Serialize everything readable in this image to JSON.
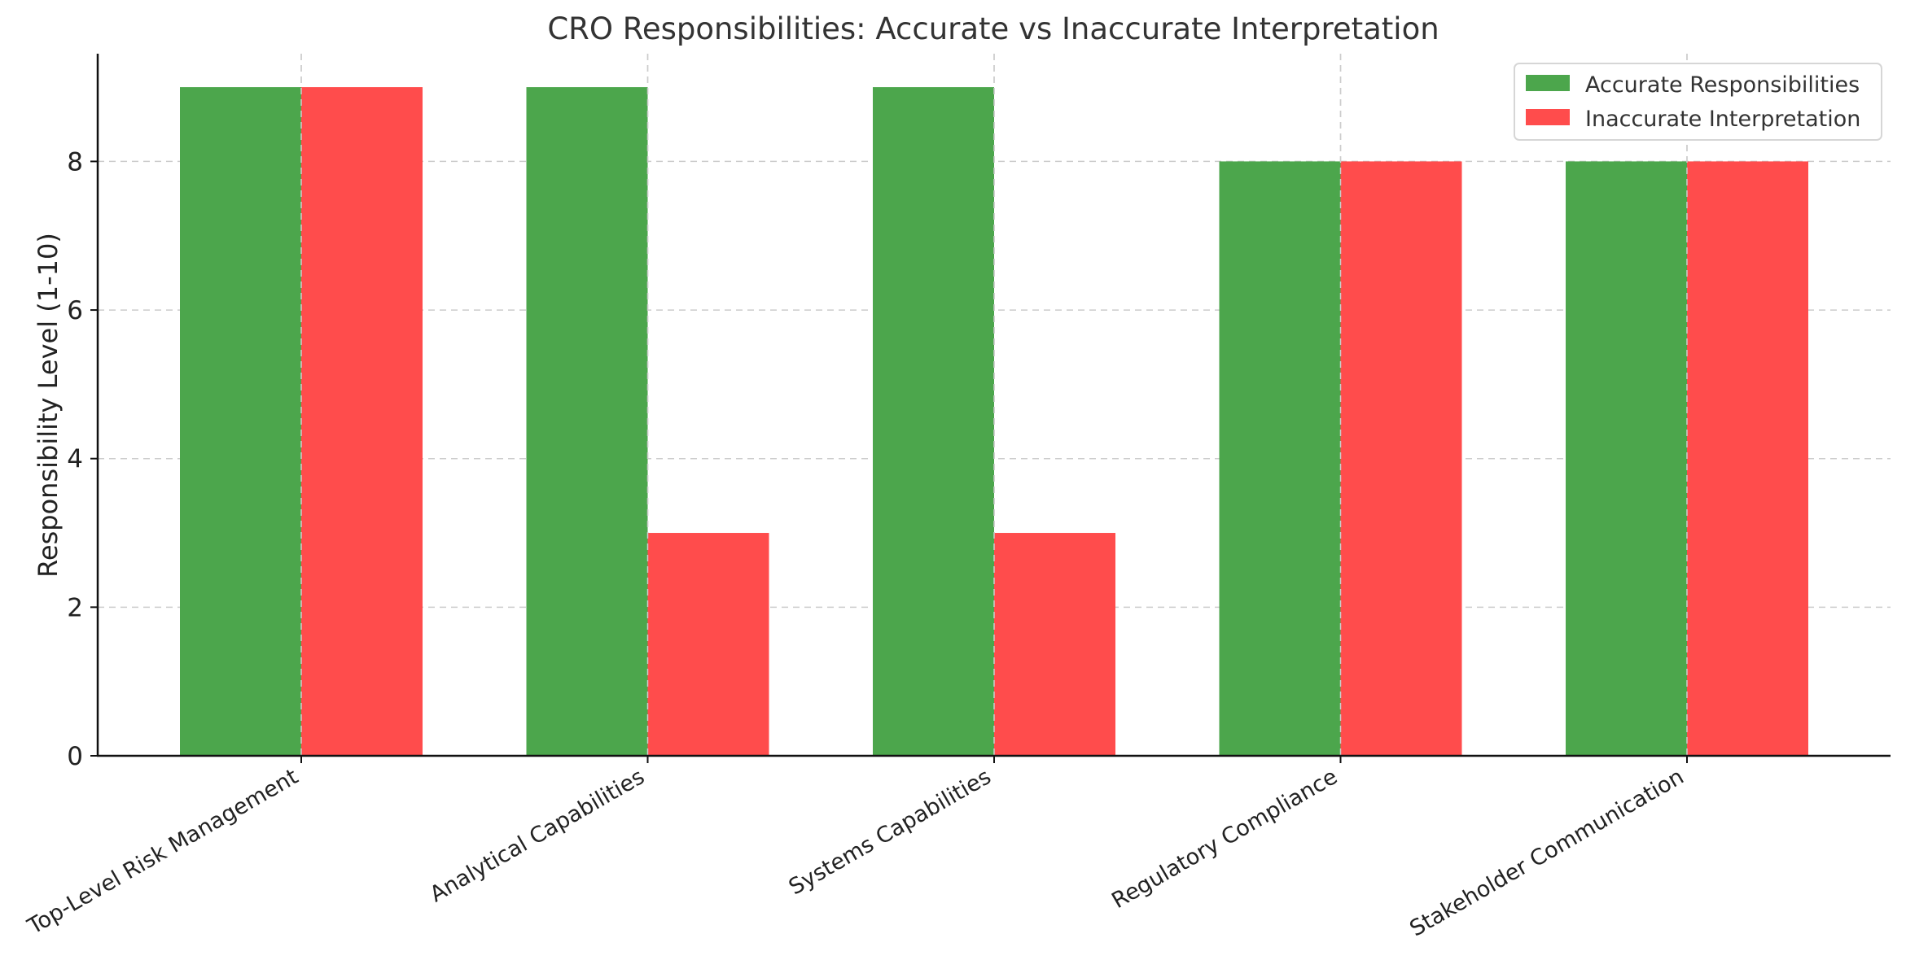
{
  "chart_data": {
    "type": "bar",
    "title": "CRO Responsibilities: Accurate vs Inaccurate Interpretation",
    "xlabel": "",
    "ylabel": "Responsibility Level (1-10)",
    "categories": [
      "Top-Level Risk Management",
      "Analytical Capabilities",
      "Systems Capabilities",
      "Regulatory Compliance",
      "Stakeholder Communication"
    ],
    "series": [
      {
        "name": "Accurate Responsibilities",
        "color": "#4ca64c",
        "values": [
          9,
          9,
          9,
          8,
          8
        ]
      },
      {
        "name": "Inaccurate Interpretation",
        "color": "#ff4c4c",
        "values": [
          9,
          3,
          3,
          8,
          8
        ]
      }
    ],
    "ylim": [
      0,
      9.45
    ],
    "yticks": [
      0,
      2,
      4,
      6,
      8
    ],
    "grid": true,
    "legend_position": "top-right"
  }
}
